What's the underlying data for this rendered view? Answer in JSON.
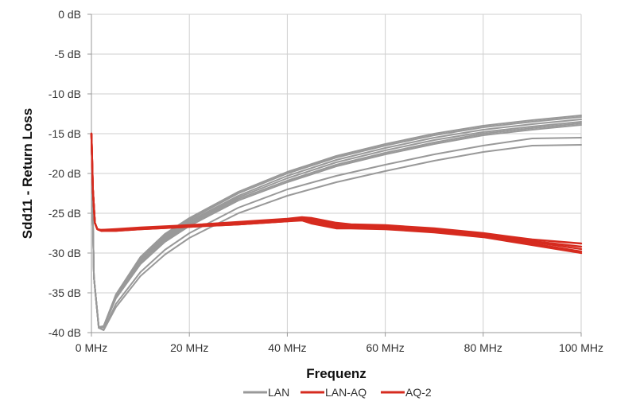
{
  "chart_data": {
    "type": "line",
    "xlabel": "Frequenz",
    "ylabel": "Sdd11 - Return Loss",
    "xlim": [
      0,
      100
    ],
    "ylim": [
      -40,
      0
    ],
    "x_ticks": [
      0,
      20,
      40,
      60,
      80,
      100
    ],
    "x_tick_labels": [
      "0 MHz",
      "20 MHz",
      "40 MHz",
      "60 MHz",
      "80 MHz",
      "100 MHz"
    ],
    "y_ticks": [
      0,
      -5,
      -10,
      -15,
      -20,
      -25,
      -30,
      -35,
      -40
    ],
    "y_tick_labels": [
      "0 dB",
      "-5 dB",
      "-10 dB",
      "-15 dB",
      "-20 dB",
      "-25 dB",
      "-30 dB",
      "-35 dB",
      "-40 dB"
    ],
    "grid": true,
    "legend_position": "bottom",
    "colors": {
      "LAN": "#999999",
      "LAN-AQ": "#d62b1f",
      "AQ-2": "#d62b1f"
    },
    "legend": [
      {
        "label": "LAN",
        "color": "#999999"
      },
      {
        "label": "LAN-AQ",
        "color": "#d62b1f"
      },
      {
        "label": "AQ-2",
        "color": "#d62b1f"
      }
    ],
    "series": [
      {
        "group": "LAN",
        "x": [
          0,
          0.5,
          1.5,
          2.5,
          5,
          10,
          15,
          20,
          30,
          40,
          50,
          60,
          70,
          80,
          90,
          100
        ],
        "y": [
          -15,
          -33,
          -39.3,
          -39.2,
          -35.2,
          -30.5,
          -27.6,
          -25.6,
          -22.3,
          -19.8,
          -17.8,
          -16.3,
          -15.0,
          -14.0,
          -13.3,
          -12.7
        ]
      },
      {
        "group": "LAN",
        "x": [
          0,
          0.5,
          1.5,
          2.5,
          5,
          10,
          15,
          20,
          30,
          40,
          50,
          60,
          70,
          80,
          90,
          100
        ],
        "y": [
          -15,
          -33,
          -39.3,
          -39.2,
          -35.3,
          -30.7,
          -27.8,
          -25.8,
          -22.5,
          -20.0,
          -18.0,
          -16.5,
          -15.2,
          -14.2,
          -13.5,
          -12.9
        ]
      },
      {
        "group": "LAN",
        "x": [
          0,
          0.5,
          1.5,
          2.5,
          5,
          10,
          15,
          20,
          30,
          40,
          50,
          60,
          70,
          80,
          90,
          100
        ],
        "y": [
          -15,
          -33,
          -39.3,
          -39.2,
          -35.4,
          -30.9,
          -28.0,
          -26.0,
          -22.8,
          -20.3,
          -18.3,
          -16.8,
          -15.5,
          -14.5,
          -13.8,
          -13.2
        ]
      },
      {
        "group": "LAN",
        "x": [
          0,
          0.5,
          1.5,
          2.5,
          5,
          10,
          15,
          20,
          30,
          40,
          50,
          60,
          70,
          80,
          90,
          100
        ],
        "y": [
          -15,
          -33,
          -39.3,
          -39.2,
          -35.5,
          -31.0,
          -28.2,
          -26.2,
          -23.0,
          -20.6,
          -18.6,
          -17.1,
          -15.8,
          -14.8,
          -14.1,
          -13.5
        ]
      },
      {
        "group": "LAN",
        "x": [
          0,
          0.5,
          1.5,
          2.5,
          5,
          10,
          15,
          20,
          30,
          40,
          50,
          60,
          70,
          80,
          90,
          100
        ],
        "y": [
          -15,
          -33,
          -39.3,
          -39.2,
          -35.6,
          -31.2,
          -28.4,
          -26.4,
          -23.2,
          -20.9,
          -18.9,
          -17.4,
          -16.1,
          -15.0,
          -14.3,
          -13.7
        ]
      },
      {
        "group": "LAN",
        "x": [
          0,
          0.5,
          1.5,
          2.5,
          5,
          10,
          15,
          20,
          30,
          40,
          50,
          60,
          70,
          80,
          90,
          100
        ],
        "y": [
          -15,
          -33,
          -39.4,
          -39.3,
          -35.7,
          -31.4,
          -28.6,
          -26.6,
          -23.4,
          -21.1,
          -19.1,
          -17.6,
          -16.3,
          -15.2,
          -14.5,
          -13.9
        ]
      },
      {
        "group": "LAN",
        "x": [
          0,
          0.5,
          1.5,
          2.5,
          5,
          10,
          15,
          20,
          30,
          40,
          50,
          60,
          70,
          80,
          90,
          100
        ],
        "y": [
          -15,
          -33,
          -39.4,
          -39.6,
          -36.4,
          -32.4,
          -29.6,
          -27.5,
          -24.3,
          -22.0,
          -20.3,
          -18.9,
          -17.6,
          -16.5,
          -15.6,
          -15.5
        ]
      },
      {
        "group": "LAN",
        "x": [
          0,
          0.5,
          1.5,
          2.5,
          5,
          10,
          15,
          20,
          30,
          40,
          50,
          60,
          70,
          80,
          90,
          100
        ],
        "y": [
          -15,
          -33,
          -39.4,
          -39.7,
          -36.8,
          -32.9,
          -30.2,
          -28.1,
          -25.0,
          -22.8,
          -21.1,
          -19.7,
          -18.4,
          -17.3,
          -16.5,
          -16.4
        ]
      },
      {
        "group": "LAN-AQ",
        "x": [
          0,
          0.3,
          0.7,
          1.2,
          2,
          5,
          10,
          20,
          30,
          40,
          43,
          45,
          50,
          53,
          60,
          70,
          80,
          90,
          100
        ],
        "y": [
          -15,
          -22,
          -26.2,
          -27.0,
          -27.1,
          -27.0,
          -26.8,
          -26.5,
          -26.1,
          -25.7,
          -25.5,
          -25.6,
          -26.2,
          -26.4,
          -26.5,
          -26.9,
          -27.5,
          -28.3,
          -28.8
        ]
      },
      {
        "group": "LAN-AQ",
        "x": [
          0,
          0.3,
          0.7,
          1.2,
          2,
          5,
          10,
          20,
          30,
          40,
          43,
          45,
          50,
          53,
          60,
          70,
          80,
          90,
          100
        ],
        "y": [
          -15,
          -22,
          -26.2,
          -27.0,
          -27.1,
          -27.1,
          -26.9,
          -26.6,
          -26.2,
          -25.8,
          -25.6,
          -25.8,
          -26.4,
          -26.6,
          -26.7,
          -27.1,
          -27.7,
          -28.5,
          -29.2
        ]
      },
      {
        "group": "LAN-AQ",
        "x": [
          0,
          0.3,
          0.7,
          1.2,
          2,
          5,
          10,
          20,
          30,
          40,
          43,
          45,
          50,
          53,
          60,
          70,
          80,
          90,
          100
        ],
        "y": [
          -15,
          -22,
          -26.2,
          -27.0,
          -27.2,
          -27.1,
          -26.9,
          -26.6,
          -26.3,
          -25.9,
          -25.7,
          -26.0,
          -26.6,
          -26.7,
          -26.8,
          -27.2,
          -27.8,
          -28.6,
          -29.5
        ]
      },
      {
        "group": "AQ-2",
        "x": [
          0,
          0.3,
          0.7,
          1.2,
          2,
          5,
          10,
          20,
          30,
          40,
          43,
          45,
          50,
          53,
          60,
          70,
          80,
          90,
          100
        ],
        "y": [
          -15,
          -22,
          -26.2,
          -27.0,
          -27.2,
          -27.2,
          -27.0,
          -26.7,
          -26.4,
          -26.0,
          -25.8,
          -26.2,
          -26.8,
          -26.8,
          -26.9,
          -27.3,
          -27.9,
          -28.8,
          -29.8
        ]
      },
      {
        "group": "AQ-2",
        "x": [
          0,
          0.3,
          0.7,
          1.2,
          2,
          5,
          10,
          20,
          30,
          40,
          43,
          45,
          50,
          53,
          60,
          70,
          80,
          90,
          100
        ],
        "y": [
          -15,
          -22,
          -26.2,
          -27.0,
          -27.2,
          -27.2,
          -27.0,
          -26.7,
          -26.4,
          -26.0,
          -25.9,
          -26.3,
          -26.9,
          -26.9,
          -27.0,
          -27.4,
          -28.0,
          -29.0,
          -30.0
        ]
      }
    ]
  }
}
